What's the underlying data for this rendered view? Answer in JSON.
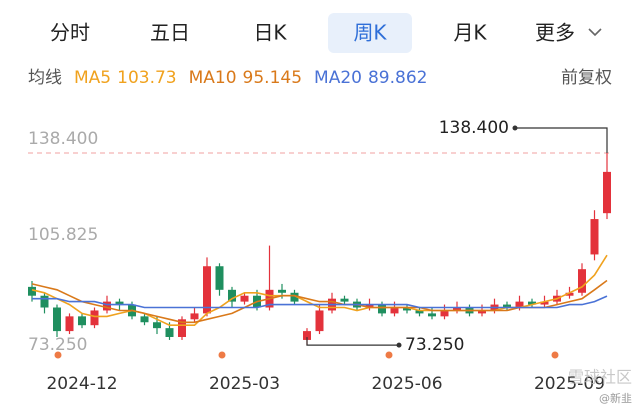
{
  "toolbar": {
    "tabs": [
      "分时",
      "五日",
      "日K",
      "周K",
      "月K",
      "更多"
    ],
    "active_tab": 3
  },
  "chart_data": {
    "type": "candlestick",
    "legend_title": "均线",
    "adjustment": "前复权",
    "categories": [
      null,
      null,
      null,
      null,
      "2024-12",
      null,
      null,
      null,
      null,
      null,
      null,
      null,
      null,
      null,
      null,
      null,
      null,
      "2025-03",
      null,
      null,
      null,
      null,
      null,
      null,
      null,
      null,
      null,
      null,
      null,
      null,
      "2025-06",
      null,
      null,
      null,
      null,
      null,
      null,
      null,
      null,
      null,
      null,
      null,
      null,
      "2025-09",
      null,
      null,
      null
    ],
    "open": [
      93,
      90,
      86,
      78,
      83,
      80,
      85,
      88,
      87,
      83,
      81,
      79,
      76,
      82,
      84,
      100,
      92,
      88,
      90,
      86,
      92,
      91,
      75,
      78,
      85,
      89,
      88,
      86,
      87,
      84,
      86,
      85,
      84,
      83,
      85,
      86,
      84,
      85,
      87,
      86,
      88,
      87,
      88,
      90,
      91,
      104,
      118
    ],
    "high": [
      95,
      91,
      87,
      84,
      84,
      86,
      90,
      89,
      88,
      84,
      83,
      81,
      83,
      86,
      103,
      101,
      93,
      91,
      92,
      107,
      94,
      92,
      79,
      87,
      91,
      90,
      89,
      89,
      88,
      88,
      87,
      86,
      86,
      87,
      88,
      87,
      87,
      89,
      88,
      90,
      89,
      90,
      92,
      93,
      101,
      119,
      138.4
    ],
    "low": [
      88,
      84,
      76,
      77,
      79,
      79,
      84,
      85,
      82,
      80,
      77,
      75,
      75,
      81,
      83,
      90,
      86,
      87,
      85,
      85,
      89,
      87,
      73.25,
      77,
      84,
      87,
      85,
      85,
      83,
      83,
      84,
      83,
      82,
      82,
      84,
      83,
      83,
      84,
      85,
      85,
      86,
      86,
      87,
      89,
      90,
      102,
      116
    ],
    "close": [
      90,
      86,
      78,
      83,
      80,
      85,
      88,
      87,
      83,
      81,
      79,
      76,
      82,
      84,
      100,
      92,
      88,
      90,
      86,
      92,
      91,
      88,
      78,
      85,
      89,
      88,
      86,
      87,
      84,
      86,
      85,
      84,
      83,
      85,
      86,
      84,
      85,
      87,
      86,
      88,
      87,
      88,
      90,
      91,
      99,
      116,
      132
    ],
    "up_color": "#e3323b",
    "down_color": "#1f8f5f",
    "series": [
      {
        "name": "MA5",
        "color": "#f0a21e",
        "values": [
          92,
          91,
          89,
          87,
          84,
          83,
          83,
          84,
          85,
          84,
          82,
          80,
          80,
          80,
          84,
          86,
          89,
          91,
          91,
          90,
          90,
          90,
          88,
          86,
          86,
          86,
          85,
          86,
          86,
          86,
          86,
          85,
          85,
          85,
          85,
          85,
          85,
          85,
          86,
          86,
          87,
          88,
          89,
          91,
          93,
          97,
          103.73
        ]
      },
      {
        "name": "MA10",
        "color": "#d9791a",
        "values": [
          94,
          93,
          92,
          90,
          88,
          87,
          86,
          85,
          85,
          84,
          83,
          82,
          81,
          81,
          82,
          83,
          84,
          86,
          88,
          89,
          90,
          90,
          89,
          88,
          88,
          87,
          87,
          86,
          86,
          86,
          86,
          86,
          85,
          85,
          85,
          85,
          85,
          85,
          85,
          86,
          86,
          86,
          87,
          88,
          89,
          92,
          95.145
        ]
      },
      {
        "name": "MA20",
        "color": "#4a72d6",
        "values": [
          89,
          89,
          89,
          88,
          88,
          88,
          87,
          87,
          87,
          86,
          86,
          86,
          86,
          86,
          86,
          86,
          86,
          86,
          86,
          87,
          87,
          87,
          87,
          87,
          87,
          87,
          87,
          87,
          87,
          87,
          87,
          86,
          86,
          86,
          86,
          86,
          86,
          86,
          86,
          86,
          86,
          86,
          86,
          87,
          87,
          88,
          89.862
        ]
      }
    ],
    "ylim": [
      66.5,
      149.6
    ],
    "yticks": [
      {
        "value": 138.4,
        "label": "138.400"
      },
      105.825,
      {
        "value": 73.25,
        "label": "73.250"
      }
    ],
    "max_label": "138.400",
    "min_label": "73.250"
  },
  "watermark": [
    "雪球社区",
    "@新韭"
  ]
}
